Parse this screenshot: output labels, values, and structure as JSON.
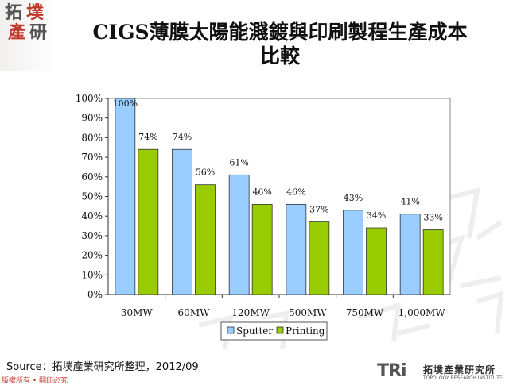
{
  "logo": {
    "chars": [
      "拓",
      "墣",
      "產",
      "研"
    ]
  },
  "title": {
    "line1": "CIGS薄膜太陽能濺鍍與印刷製程生產成本",
    "line2": "比較"
  },
  "chart_data": {
    "type": "bar",
    "categories": [
      "30MW",
      "60MW",
      "120MW",
      "500MW",
      "750MW",
      "1,000MW"
    ],
    "series": [
      {
        "name": "Sputter",
        "values": [
          100,
          74,
          61,
          46,
          43,
          41
        ],
        "labels": [
          "100%",
          "74%",
          "61%",
          "46%",
          "43%",
          "41%"
        ],
        "color": "#99CCFF"
      },
      {
        "name": "Printing",
        "values": [
          74,
          56,
          46,
          37,
          34,
          33
        ],
        "labels": [
          "74%",
          "56%",
          "46%",
          "37%",
          "34%",
          "33%"
        ],
        "color": "#99CC00"
      }
    ],
    "ylim": [
      0,
      100
    ],
    "yticks": [
      "0%",
      "10%",
      "20%",
      "30%",
      "40%",
      "50%",
      "60%",
      "70%",
      "80%",
      "90%",
      "100%"
    ],
    "grid": false,
    "legend": "bottom"
  },
  "footer": {
    "source": "Source：拓墣產業研究所整理，2012/09",
    "copyright": "版權所有 • 翻印必究",
    "brand_tri": "TRi",
    "brand_cn": "拓墣產業研究所",
    "brand_en": "TOPOLOGY RESEARCH INSTITUTE"
  },
  "colors": {
    "sputter": "#99CCFF",
    "printing": "#99CC00",
    "logo_red": "#c0392b"
  }
}
